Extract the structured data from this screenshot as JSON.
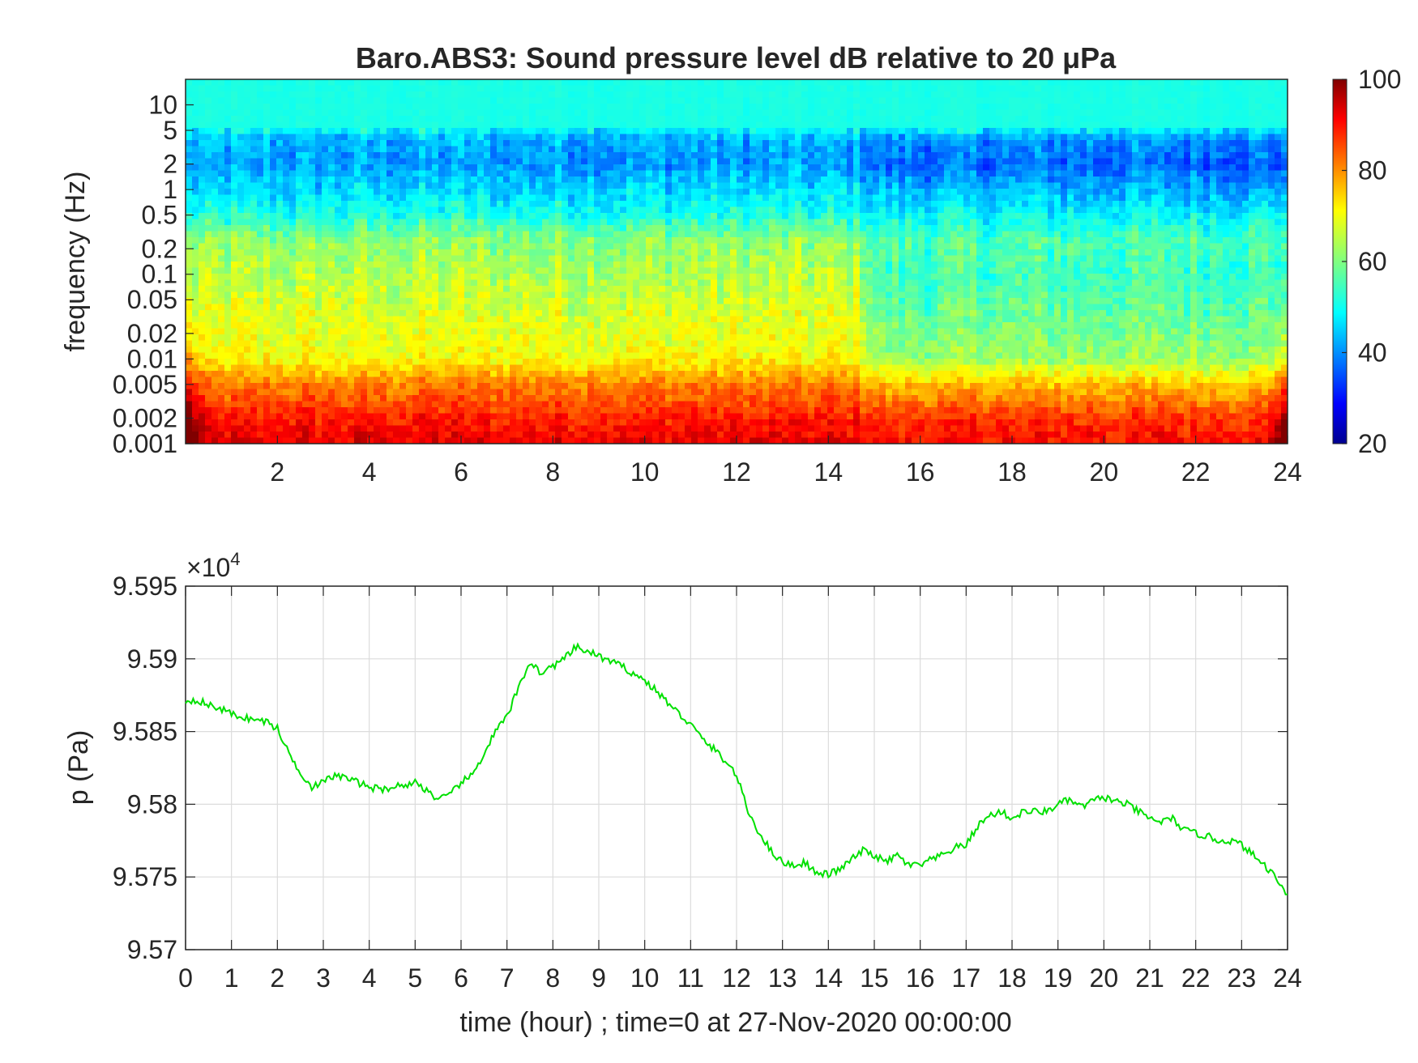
{
  "chart_data": [
    {
      "type": "heatmap",
      "title": "Baro.ABS3: Sound pressure level dB relative to 20 μPa",
      "xlabel": "",
      "ylabel": "frequency (Hz)",
      "xlim": [
        0,
        24
      ],
      "x_ticks": [
        "2",
        "4",
        "6",
        "8",
        "10",
        "12",
        "14",
        "16",
        "18",
        "20",
        "22",
        "24"
      ],
      "y_scale": "log",
      "ylim": [
        0.001,
        20
      ],
      "y_ticks": [
        "0.001",
        "0.002",
        "0.005",
        "0.01",
        "0.02",
        "0.05",
        "0.1",
        "0.2",
        "0.5",
        "1",
        "2",
        "5",
        "10"
      ],
      "colorbar": {
        "range": [
          20,
          100
        ],
        "ticks": [
          "20",
          "40",
          "60",
          "80",
          "100"
        ],
        "colormap": "jet"
      },
      "description_levels_db": {
        "freq_band_hz": [
          "0.001-0.005",
          "0.005-0.1",
          "0.1-0.5",
          "0.5-5",
          "5-20"
        ],
        "hours_0_to_15": [
          88,
          68,
          62,
          45,
          52
        ],
        "hours_15_to_24": [
          85,
          58,
          55,
          40,
          52
        ]
      }
    },
    {
      "type": "line",
      "xlabel": "time (hour) ; time=0 at 27-Nov-2020 00:00:00",
      "ylabel": "p (Pa)",
      "exponent_label": "×10",
      "exponent_power": "4",
      "xlim": [
        0,
        24
      ],
      "ylim": [
        9.57,
        9.595
      ],
      "x_ticks": [
        "0",
        "1",
        "2",
        "3",
        "4",
        "5",
        "6",
        "7",
        "8",
        "9",
        "10",
        "11",
        "12",
        "13",
        "14",
        "15",
        "16",
        "17",
        "18",
        "19",
        "20",
        "21",
        "22",
        "23",
        "24"
      ],
      "y_ticks": [
        "9.57",
        "9.575",
        "9.58",
        "9.585",
        "9.59",
        "9.595"
      ],
      "grid": true,
      "line_color": "#00e000",
      "series": [
        {
          "x": [
            0,
            0.25,
            0.5,
            0.75,
            1,
            1.25,
            1.5,
            1.75,
            2,
            2.25,
            2.5,
            2.75,
            3,
            3.25,
            3.5,
            3.75,
            4,
            4.25,
            4.5,
            4.75,
            5,
            5.25,
            5.5,
            5.75,
            6,
            6.25,
            6.5,
            6.75,
            7,
            7.25,
            7.5,
            7.75,
            8,
            8.25,
            8.5,
            8.75,
            9,
            9.25,
            9.5,
            9.75,
            10,
            10.25,
            10.5,
            10.75,
            11,
            11.25,
            11.5,
            11.75,
            12,
            12.25,
            12.5,
            12.75,
            13,
            13.25,
            13.5,
            13.75,
            14,
            14.25,
            14.5,
            14.75,
            15,
            15.25,
            15.5,
            15.75,
            16,
            16.25,
            16.5,
            16.75,
            17,
            17.25,
            17.5,
            17.75,
            18,
            18.25,
            18.5,
            18.75,
            19,
            19.25,
            19.5,
            19.75,
            20,
            20.25,
            20.5,
            20.75,
            21,
            21.25,
            21.5,
            21.75,
            22,
            22.25,
            22.5,
            22.75,
            23,
            23.25,
            23.5,
            23.75,
            24
          ],
          "y": [
            9.5871,
            9.5872,
            9.5868,
            9.5866,
            9.5862,
            9.586,
            9.5858,
            9.5857,
            9.5852,
            9.5835,
            9.5822,
            9.5812,
            9.5815,
            9.582,
            9.5818,
            9.5815,
            9.5812,
            9.581,
            9.5812,
            9.5813,
            9.5815,
            9.581,
            9.5803,
            9.5806,
            9.5815,
            9.582,
            9.5835,
            9.585,
            9.586,
            9.588,
            9.5898,
            9.589,
            9.5895,
            9.59,
            9.5908,
            9.5905,
            9.5902,
            9.5898,
            9.5895,
            9.589,
            9.5885,
            9.5878,
            9.587,
            9.5862,
            9.5855,
            9.5845,
            9.5838,
            9.583,
            9.582,
            9.5795,
            9.578,
            9.5768,
            9.576,
            9.5758,
            9.576,
            9.5752,
            9.5752,
            9.5755,
            9.5762,
            9.5768,
            9.5765,
            9.576,
            9.5765,
            9.5758,
            9.5758,
            9.5762,
            9.5765,
            9.577,
            9.5772,
            9.5785,
            9.5792,
            9.5795,
            9.579,
            9.5795,
            9.5795,
            9.5795,
            9.58,
            9.5803,
            9.5798,
            9.5802,
            9.5805,
            9.5802,
            9.58,
            9.5795,
            9.579,
            9.5788,
            9.579,
            9.5782,
            9.578,
            9.5778,
            9.5775,
            9.5775,
            9.5772,
            9.5765,
            9.5758,
            9.575,
            9.5738
          ]
        }
      ]
    }
  ]
}
